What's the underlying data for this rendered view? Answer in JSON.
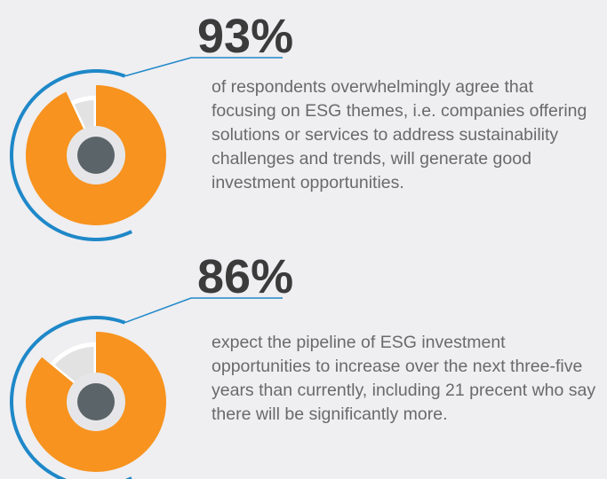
{
  "chart_data": [
    {
      "type": "pie",
      "values": [
        93
      ],
      "value_labels": [
        "93%"
      ],
      "color": "#f7931e",
      "description": "of respondents overwhelmingly agree that focusing on ESG themes, i.e. companies offering solutions or services to address sustainability challenges and trends, will generate good investment opportunities."
    },
    {
      "type": "pie",
      "values": [
        86
      ],
      "value_labels": [
        "86%"
      ],
      "color": "#f7931e",
      "description": "expect the pipeline of ESG investment opportunities to increase over the next three-five years than currently, including 21 precent who say there will be significantly more."
    }
  ]
}
